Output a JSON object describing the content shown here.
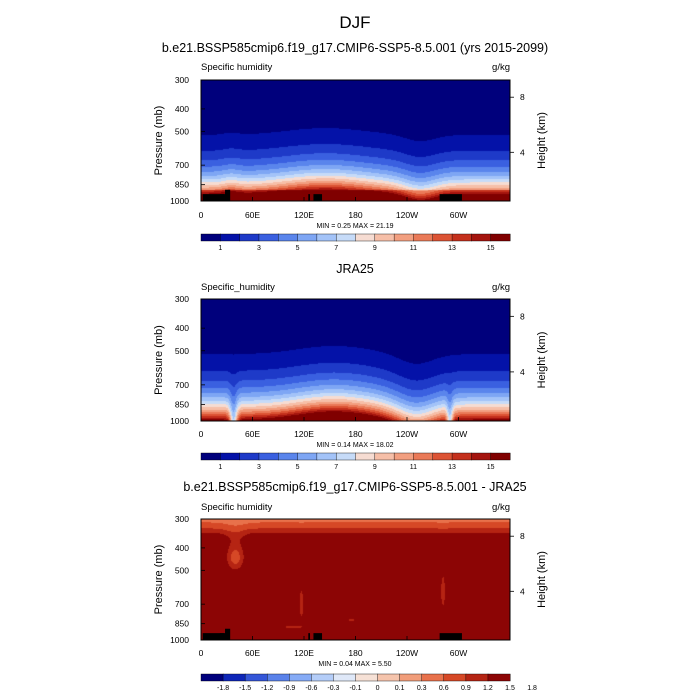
{
  "figure": {
    "title": "DJF"
  },
  "colors": {
    "positive_palette": [
      "#00007c",
      "#0412a8",
      "#1e3ac8",
      "#3a60e0",
      "#5a85ec",
      "#7ea6f4",
      "#a3c3f8",
      "#c6dbf8",
      "#f6dcd2",
      "#f6bfa8",
      "#f29f80",
      "#ea7a58",
      "#dc5334",
      "#c4301c",
      "#a4140e",
      "#800000"
    ],
    "diff_palette": [
      "#00007c",
      "#0e26b8",
      "#3456d8",
      "#5a82ea",
      "#86abf6",
      "#b4cdf8",
      "#dfe8f8",
      "#f6e1d6",
      "#f5c4ac",
      "#f19d7a",
      "#e8714b",
      "#d64826",
      "#b52413",
      "#8c0505"
    ],
    "land_mask": "#000000"
  },
  "chart_data": [
    {
      "type": "heatmap",
      "title": "b.e21.BSSP585cmip6.f19_g17.CMIP6-SSP5-8.5.001 (yrs 2015-2099)",
      "left_label": "Specific humidity",
      "units_label": "g/kg",
      "xlabel": "",
      "ylabel": "Pressure (mb)",
      "y2label": "Height (km)",
      "x_ticks": [
        "0",
        "60E",
        "120E",
        "180",
        "120W",
        "60W"
      ],
      "x_tick_lon": [
        0,
        60,
        120,
        180,
        240,
        300
      ],
      "xlim": [
        0,
        360
      ],
      "y_ticks": [
        "300",
        "400",
        "500",
        "700",
        "850",
        "1000"
      ],
      "y_tick_p": [
        300,
        400,
        500,
        700,
        850,
        1000
      ],
      "ylim": [
        1000,
        300
      ],
      "y2_ticks": [
        "8",
        "4"
      ],
      "y2_tick_p": [
        356,
        616
      ],
      "stats": "MIN =   0.25  MAX =  21.19",
      "colorbar_labels": [
        "1",
        "3",
        "5",
        "7",
        "9",
        "11",
        "13",
        "15"
      ],
      "field": "model",
      "surface_depth_mb": 66,
      "masked_lon_ranges": [
        [
          2,
          29
        ],
        [
          22,
          27
        ],
        [
          28,
          30
        ],
        [
          125,
          127
        ],
        [
          131,
          141
        ],
        [
          278,
          304
        ]
      ],
      "masked_tall_lon_ranges": [
        [
          28,
          34
        ]
      ]
    },
    {
      "type": "heatmap",
      "title": "JRA25",
      "left_label": "Specific_humidity",
      "units_label": "g/kg",
      "xlabel": "",
      "ylabel": "Pressure (mb)",
      "y2label": "Height (km)",
      "x_ticks": [
        "0",
        "60E",
        "120E",
        "180",
        "120W",
        "60W"
      ],
      "x_tick_lon": [
        0,
        60,
        120,
        180,
        240,
        300
      ],
      "xlim": [
        0,
        360
      ],
      "y_ticks": [
        "300",
        "400",
        "500",
        "700",
        "850",
        "1000"
      ],
      "y_tick_p": [
        300,
        400,
        500,
        700,
        850,
        1000
      ],
      "ylim": [
        1000,
        300
      ],
      "y2_ticks": [
        "8",
        "4"
      ],
      "y2_tick_p": [
        356,
        616
      ],
      "stats": "MIN =   0.14  MAX =  18.02",
      "colorbar_labels": [
        "1",
        "3",
        "5",
        "7",
        "9",
        "11",
        "13",
        "15"
      ],
      "field": "obs"
    },
    {
      "type": "heatmap",
      "title": "b.e21.BSSP585cmip6.f19_g17.CMIP6-SSP5-8.5.001 - JRA25",
      "left_label": "Specific humidity",
      "units_label": "g/kg",
      "xlabel": "",
      "ylabel": "Pressure (mb)",
      "y2label": "Height (km)",
      "x_ticks": [
        "0",
        "60E",
        "120E",
        "180",
        "120W",
        "60W"
      ],
      "x_tick_lon": [
        0,
        60,
        120,
        180,
        240,
        300
      ],
      "xlim": [
        0,
        360
      ],
      "y_ticks": [
        "300",
        "400",
        "500",
        "700",
        "850",
        "1000"
      ],
      "y_tick_p": [
        300,
        400,
        500,
        700,
        850,
        1000
      ],
      "ylim": [
        1000,
        300
      ],
      "y2_ticks": [
        "8",
        "4"
      ],
      "y2_tick_p": [
        356,
        616
      ],
      "stats": "MIN =   0.04  MAX =   5.50",
      "colorbar_labels": [
        "-1.8",
        "-1.5",
        "-1.2",
        "-0.9",
        "-0.6",
        "-0.3",
        "-0.1",
        "0",
        "0.1",
        "0.3",
        "0.6",
        "0.9",
        "1.2",
        "1.5",
        "1.8"
      ],
      "field": "diff",
      "surface_depth_mb": 66,
      "masked_lon_ranges": [
        [
          2,
          29
        ],
        [
          22,
          27
        ],
        [
          28,
          30
        ],
        [
          125,
          127
        ],
        [
          131,
          141
        ],
        [
          278,
          304
        ]
      ],
      "masked_tall_lon_ranges": [
        [
          28,
          34
        ]
      ]
    }
  ]
}
